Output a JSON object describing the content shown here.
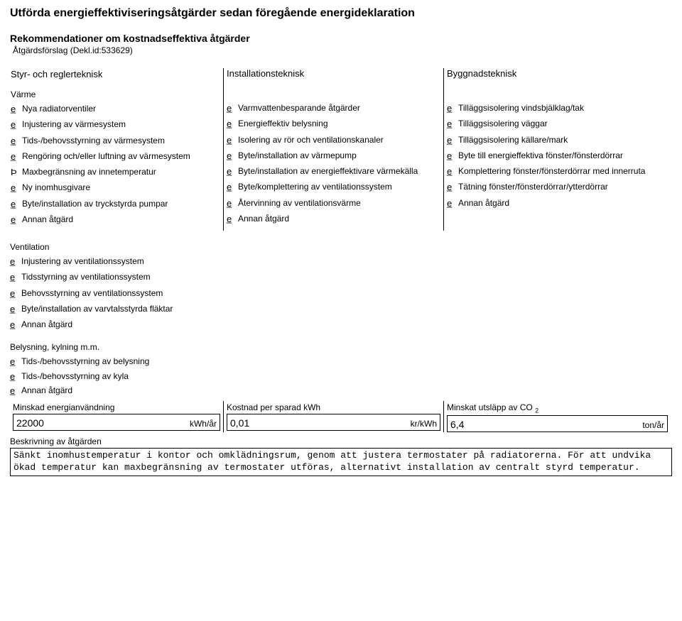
{
  "title": "Utförda energieffektiviseringsåtgärder sedan föregående energideklaration",
  "rek_title": "Rekommendationer om kostnadseffektiva åtgärder",
  "rek_sub": "Åtgärdsförslag (Dekl.id:533629)",
  "col_headers": {
    "c1": "Styr- och reglerteknisk",
    "c2": "Installationsteknisk",
    "c3": "Byggnadsteknisk"
  },
  "marks": {
    "unchecked": "e̲",
    "checked": "Þ"
  },
  "c1": {
    "varme_head": "Värme",
    "items": [
      {
        "chk": false,
        "label": "Nya radiatorventiler"
      },
      {
        "chk": false,
        "label": "Injustering av värmesystem"
      },
      {
        "chk": false,
        "label": "Tids-/behovsstyrning av värmesystem"
      },
      {
        "chk": false,
        "label": "Rengöring och/eller luftning av värmesystem"
      },
      {
        "chk": true,
        "label": "Maxbegränsning av innetemperatur"
      },
      {
        "chk": false,
        "label": "Ny inomhusgivare"
      },
      {
        "chk": false,
        "label": "Byte/installation av tryckstyrda pumpar"
      },
      {
        "chk": false,
        "label": "Annan åtgärd"
      }
    ],
    "vent_head": "Ventilation",
    "vent_items": [
      {
        "chk": false,
        "label": "Injustering av ventilationssystem"
      },
      {
        "chk": false,
        "label": "Tidsstyrning av ventilationssystem"
      },
      {
        "chk": false,
        "label": "Behovsstyrning av ventilationssystem"
      },
      {
        "chk": false,
        "label": "Byte/installation av varvtalsstyrda fläktar"
      },
      {
        "chk": false,
        "label": "Annan åtgärd"
      }
    ],
    "bel_head": "Belysning, kylning m.m.",
    "bel_items": [
      {
        "chk": false,
        "label": "Tids-/behovsstyrning av belysning"
      },
      {
        "chk": false,
        "label": "Tids-/behovsstyrning av kyla"
      },
      {
        "chk": false,
        "label": "Annan åtgärd"
      }
    ]
  },
  "c2": {
    "items": [
      {
        "chk": false,
        "label": "Varmvattenbesparande åtgärder"
      },
      {
        "chk": false,
        "label": "Energieffektiv belysning"
      },
      {
        "chk": false,
        "label": "Isolering av rör och ventilationskanaler"
      },
      {
        "chk": false,
        "label": "Byte/installation av värmepump"
      },
      {
        "chk": false,
        "label": "Byte/installation av energieffektivare värmekälla"
      },
      {
        "chk": false,
        "label": "Byte/komplettering av ventilationssystem"
      },
      {
        "chk": false,
        "label": "Återvinning av ventilationsvärme"
      },
      {
        "chk": false,
        "label": "Annan åtgärd"
      }
    ]
  },
  "c3": {
    "items": [
      {
        "chk": false,
        "label": "Tilläggsisolering vindsbjälklag/tak"
      },
      {
        "chk": false,
        "label": "Tilläggsisolering väggar"
      },
      {
        "chk": false,
        "label": "Tilläggsisolering källare/mark"
      },
      {
        "chk": false,
        "label": "Byte till energieffektiva fönster/fönsterdörrar"
      },
      {
        "chk": false,
        "label": "Komplettering fönster/fönsterdörrar med innerruta"
      },
      {
        "chk": false,
        "label": "Tätning fönster/fönsterdörrar/ytterdörrar"
      },
      {
        "chk": false,
        "label": "Annan åtgärd"
      }
    ]
  },
  "bottom": {
    "b1_label": "Minskad energianvändning",
    "b1_value": "22000",
    "b1_unit": "kWh/år",
    "b2_label": "Kostnad per sparad kWh",
    "b2_value": "0,01",
    "b2_unit": "kr/kWh",
    "b3_label_a": "Minskat utsläpp av CO",
    "b3_label_sub": "2",
    "b3_value": "6,4",
    "b3_unit": "ton/år"
  },
  "desc": {
    "label": "Beskrivning av åtgärden",
    "text": "Sänkt inomhustemperatur i kontor och omklädningsrum, genom att justera termostater på radiatorerna. För att undvika ökad temperatur kan maxbegränsning av termostater utföras, alternativt installation av centralt styrd temperatur."
  }
}
